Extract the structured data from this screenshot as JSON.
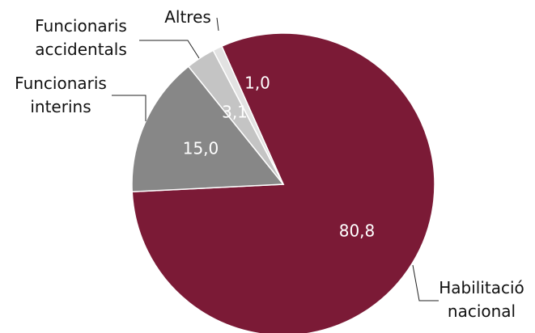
{
  "chart_data": {
    "type": "pie",
    "categories": [
      "Habilitació nacional",
      "Funcionaris accidentals",
      "Funcionaris interins",
      "Altres"
    ],
    "values": [
      80.8,
      15.0,
      3.1,
      1.0
    ],
    "value_labels": [
      "80,8",
      "15,0",
      "3,1",
      "1,0"
    ],
    "colors": [
      "#7b1a36",
      "#878787",
      "#c4c4c4",
      "#e2e2e2"
    ]
  }
}
